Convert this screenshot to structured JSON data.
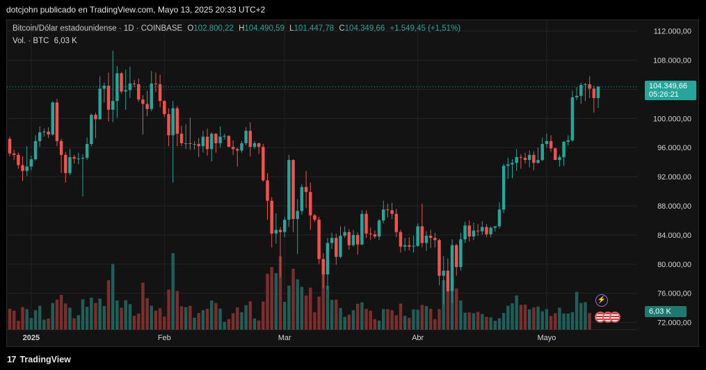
{
  "header": {
    "publisher": "dotcjohn publicado en TradingView.com, Mayo 13, 2025 20:33 UTC+2"
  },
  "legend": {
    "symbol": "Bitcoin/Dólar estadounidense · 1D · COINBASE",
    "o_label": "O",
    "o_value": "102.800,22",
    "h_label": "H",
    "h_value": "104.490,59",
    "l_label": "L",
    "l_value": "101.447,78",
    "c_label": "C",
    "c_value": "104.349,66",
    "change": "+1.549,45 (+1,51%)",
    "vol_label": "Vol. · BTC",
    "vol_value": "6,03 K"
  },
  "last_price": {
    "price": "104.349,66",
    "countdown": "05:26:21",
    "volume": "6,03 K"
  },
  "footer": {
    "brand": "TradingView"
  },
  "colors": {
    "up": "#26a69a",
    "down": "#ef5350",
    "vol_up": "#1f5f58",
    "vol_down": "#7a2f2e",
    "background": "#131313",
    "grid": "#242424"
  },
  "icons": [
    "lightning-icon",
    "us-flag-icon"
  ],
  "chart_data": {
    "type": "candlestick",
    "title": "Bitcoin/Dólar estadounidense · 1D · COINBASE",
    "xlabel": "",
    "ylabel": "",
    "x_ticks": [
      "2025",
      "Feb",
      "Mar",
      "Abr",
      "Mayo"
    ],
    "y_ticks": [
      "112.000,00",
      "108.000,00",
      "104.000,00",
      "100.000,00",
      "96.000,00",
      "92.000,00",
      "88.000,00",
      "84.000,00",
      "80.000,00",
      "76.000,00",
      "72.000,00"
    ],
    "y_tick_values": [
      112000,
      108000,
      104000,
      100000,
      96000,
      92000,
      88000,
      84000,
      80000,
      76000,
      72000
    ],
    "ylim": [
      71000,
      113500
    ],
    "grid": true,
    "legend_position": "top-left",
    "dates": [
      "2024-12-27",
      "2024-12-28",
      "2024-12-29",
      "2024-12-30",
      "2024-12-31",
      "2025-01-01",
      "2025-01-02",
      "2025-01-03",
      "2025-01-04",
      "2025-01-05",
      "2025-01-06",
      "2025-01-07",
      "2025-01-08",
      "2025-01-09",
      "2025-01-10",
      "2025-01-11",
      "2025-01-12",
      "2025-01-13",
      "2025-01-14",
      "2025-01-15",
      "2025-01-16",
      "2025-01-17",
      "2025-01-18",
      "2025-01-19",
      "2025-01-20",
      "2025-01-21",
      "2025-01-22",
      "2025-01-23",
      "2025-01-24",
      "2025-01-25",
      "2025-01-26",
      "2025-01-27",
      "2025-01-28",
      "2025-01-29",
      "2025-01-30",
      "2025-01-31",
      "2025-02-01",
      "2025-02-02",
      "2025-02-03",
      "2025-02-04",
      "2025-02-05",
      "2025-02-06",
      "2025-02-07",
      "2025-02-08",
      "2025-02-09",
      "2025-02-10",
      "2025-02-11",
      "2025-02-12",
      "2025-02-13",
      "2025-02-14",
      "2025-02-15",
      "2025-02-16",
      "2025-02-17",
      "2025-02-18",
      "2025-02-19",
      "2025-02-20",
      "2025-02-21",
      "2025-02-22",
      "2025-02-23",
      "2025-02-24",
      "2025-02-25",
      "2025-02-26",
      "2025-02-27",
      "2025-02-28",
      "2025-03-01",
      "2025-03-02",
      "2025-03-03",
      "2025-03-04",
      "2025-03-05",
      "2025-03-06",
      "2025-03-07",
      "2025-03-08",
      "2025-03-09",
      "2025-03-10",
      "2025-03-11",
      "2025-03-12",
      "2025-03-13",
      "2025-03-14",
      "2025-03-15",
      "2025-03-16",
      "2025-03-17",
      "2025-03-18",
      "2025-03-19",
      "2025-03-20",
      "2025-03-21",
      "2025-03-22",
      "2025-03-23",
      "2025-03-24",
      "2025-03-25",
      "2025-03-26",
      "2025-03-27",
      "2025-03-28",
      "2025-03-29",
      "2025-03-30",
      "2025-03-31",
      "2025-04-01",
      "2025-04-02",
      "2025-04-03",
      "2025-04-04",
      "2025-04-05",
      "2025-04-06",
      "2025-04-07",
      "2025-04-08",
      "2025-04-09",
      "2025-04-10",
      "2025-04-11",
      "2025-04-12",
      "2025-04-13",
      "2025-04-14",
      "2025-04-15",
      "2025-04-16",
      "2025-04-17",
      "2025-04-18",
      "2025-04-19",
      "2025-04-20",
      "2025-04-21",
      "2025-04-22",
      "2025-04-23",
      "2025-04-24",
      "2025-04-25",
      "2025-04-26",
      "2025-04-27",
      "2025-04-28",
      "2025-04-29",
      "2025-04-30",
      "2025-05-01",
      "2025-05-02",
      "2025-05-03",
      "2025-05-04",
      "2025-05-05",
      "2025-05-06",
      "2025-05-07",
      "2025-05-08",
      "2025-05-09",
      "2025-05-10",
      "2025-05-11",
      "2025-05-12",
      "2025-05-13"
    ],
    "ohlc": [
      [
        97200,
        97500,
        94800,
        95200
      ],
      [
        95200,
        95700,
        94300,
        95000
      ],
      [
        95000,
        95300,
        93100,
        93600
      ],
      [
        93600,
        94800,
        91400,
        92800
      ],
      [
        92800,
        96200,
        92100,
        93400
      ],
      [
        93400,
        94900,
        92900,
        94400
      ],
      [
        94400,
        97700,
        94200,
        96900
      ],
      [
        96900,
        98900,
        96100,
        98100
      ],
      [
        98100,
        98600,
        97500,
        98200
      ],
      [
        98200,
        98800,
        97300,
        97800
      ],
      [
        97800,
        102400,
        97600,
        102200
      ],
      [
        102200,
        102700,
        96200,
        96900
      ],
      [
        96900,
        97200,
        92500,
        95000
      ],
      [
        95000,
        95400,
        91200,
        92500
      ],
      [
        92500,
        95800,
        92200,
        94700
      ],
      [
        94700,
        95000,
        93800,
        94500
      ],
      [
        94500,
        95300,
        93700,
        94500
      ],
      [
        94500,
        95100,
        89300,
        94600
      ],
      [
        94600,
        97400,
        94300,
        96500
      ],
      [
        96500,
        100700,
        96200,
        100500
      ],
      [
        100500,
        100800,
        97300,
        99900
      ],
      [
        99900,
        105800,
        99800,
        104100
      ],
      [
        104100,
        104900,
        102200,
        104500
      ],
      [
        104500,
        106300,
        99600,
        101200
      ],
      [
        101200,
        109300,
        99500,
        102400
      ],
      [
        102400,
        107200,
        100100,
        106200
      ],
      [
        106200,
        106400,
        103400,
        103700
      ],
      [
        103700,
        106700,
        101200,
        103900
      ],
      [
        103900,
        107100,
        102800,
        104800
      ],
      [
        104800,
        105300,
        104300,
        104700
      ],
      [
        104700,
        105500,
        102300,
        102600
      ],
      [
        102600,
        103200,
        97800,
        102000
      ],
      [
        102000,
        103800,
        100300,
        101300
      ],
      [
        101300,
        106500,
        101000,
        104800
      ],
      [
        104800,
        106300,
        103600,
        104700
      ],
      [
        104700,
        106000,
        101500,
        102400
      ],
      [
        102400,
        102500,
        100200,
        100600
      ],
      [
        100600,
        101400,
        96200,
        97700
      ],
      [
        97700,
        102400,
        91200,
        101400
      ],
      [
        101400,
        101700,
        96200,
        97900
      ],
      [
        97900,
        99000,
        96200,
        96600
      ],
      [
        96600,
        99200,
        95800,
        96600
      ],
      [
        96600,
        100100,
        95700,
        96500
      ],
      [
        96500,
        96900,
        95700,
        96500
      ],
      [
        96500,
        97300,
        94700,
        96200
      ],
      [
        96200,
        98300,
        95300,
        97500
      ],
      [
        97500,
        98600,
        94900,
        95800
      ],
      [
        95800,
        98100,
        94100,
        97900
      ],
      [
        97900,
        98000,
        95300,
        96600
      ],
      [
        96600,
        98900,
        96000,
        97500
      ],
      [
        97500,
        97900,
        97100,
        97600
      ],
      [
        97600,
        97700,
        96100,
        96100
      ],
      [
        96100,
        97000,
        95000,
        95800
      ],
      [
        95800,
        96000,
        93400,
        95600
      ],
      [
        95600,
        96900,
        95300,
        96600
      ],
      [
        96600,
        98800,
        96300,
        98300
      ],
      [
        98300,
        99500,
        94800,
        96100
      ],
      [
        96100,
        96900,
        95800,
        96600
      ],
      [
        96600,
        96700,
        95100,
        96100
      ],
      [
        96100,
        96500,
        91300,
        91500
      ],
      [
        91500,
        92500,
        86100,
        88700
      ],
      [
        88700,
        89200,
        82300,
        84200
      ],
      [
        84200,
        87000,
        82800,
        84700
      ],
      [
        84700,
        85100,
        78200,
        84400
      ],
      [
        84400,
        86500,
        83700,
        86100
      ],
      [
        86100,
        95000,
        85100,
        94300
      ],
      [
        94300,
        94400,
        84400,
        86200
      ],
      [
        86200,
        88900,
        81400,
        87300
      ],
      [
        87300,
        91000,
        86800,
        90600
      ],
      [
        90600,
        92800,
        87700,
        89900
      ],
      [
        89900,
        91200,
        84700,
        86700
      ],
      [
        86700,
        86900,
        85800,
        86100
      ],
      [
        86100,
        86500,
        80000,
        80700
      ],
      [
        80700,
        81500,
        76700,
        78600
      ],
      [
        78600,
        83600,
        76600,
        82900
      ],
      [
        82900,
        84300,
        82100,
        83600
      ],
      [
        83600,
        84200,
        79900,
        81000
      ],
      [
        81000,
        85200,
        80800,
        83900
      ],
      [
        83900,
        85200,
        83600,
        84400
      ],
      [
        84400,
        84800,
        82000,
        82600
      ],
      [
        82600,
        84700,
        82400,
        84000
      ],
      [
        84000,
        84400,
        81300,
        82700
      ],
      [
        82700,
        87400,
        82600,
        86900
      ],
      [
        86900,
        87400,
        83600,
        84200
      ],
      [
        84200,
        85000,
        83300,
        84100
      ],
      [
        84100,
        84600,
        83500,
        83800
      ],
      [
        83800,
        86200,
        83300,
        86000
      ],
      [
        86000,
        88700,
        85600,
        87500
      ],
      [
        87500,
        88300,
        86400,
        87400
      ],
      [
        87400,
        88400,
        86200,
        86900
      ],
      [
        86900,
        87600,
        83700,
        84400
      ],
      [
        84400,
        84700,
        81600,
        82400
      ],
      [
        82400,
        83600,
        81800,
        82600
      ],
      [
        82600,
        83700,
        81900,
        82400
      ],
      [
        82400,
        83900,
        81600,
        82500
      ],
      [
        82500,
        85600,
        82400,
        85200
      ],
      [
        85200,
        88300,
        82300,
        82900
      ],
      [
        82900,
        84500,
        81800,
        83900
      ],
      [
        83900,
        84700,
        82200,
        83600
      ],
      [
        83600,
        84300,
        82300,
        83300
      ],
      [
        83300,
        83500,
        77100,
        78400
      ],
      [
        78400,
        81100,
        74500,
        79100
      ],
      [
        79100,
        80800,
        76200,
        76300
      ],
      [
        76300,
        83400,
        74600,
        82600
      ],
      [
        82600,
        82800,
        78400,
        79600
      ],
      [
        79600,
        84300,
        79100,
        83400
      ],
      [
        83400,
        85800,
        82900,
        85300
      ],
      [
        85300,
        86000,
        83100,
        83800
      ],
      [
        83800,
        85700,
        83300,
        84600
      ],
      [
        84600,
        85500,
        83900,
        84500
      ],
      [
        84500,
        85900,
        84000,
        85100
      ],
      [
        85100,
        85500,
        83700,
        84100
      ],
      [
        84100,
        85200,
        83700,
        85000
      ],
      [
        85000,
        85200,
        84500,
        85200
      ],
      [
        85200,
        88500,
        84900,
        87500
      ],
      [
        87500,
        93800,
        87000,
        93500
      ],
      [
        93500,
        94600,
        91700,
        93700
      ],
      [
        93700,
        94400,
        91800,
        93900
      ],
      [
        93900,
        95800,
        92800,
        94700
      ],
      [
        94700,
        95100,
        93100,
        94600
      ],
      [
        94600,
        95300,
        93800,
        94300
      ],
      [
        94300,
        95600,
        93300,
        95000
      ],
      [
        95000,
        95500,
        92900,
        93900
      ],
      [
        93900,
        96000,
        93800,
        94300
      ],
      [
        94300,
        97400,
        94100,
        96500
      ],
      [
        96500,
        97900,
        96000,
        96900
      ],
      [
        96900,
        97700,
        95400,
        95900
      ],
      [
        95900,
        96000,
        94400,
        94300
      ],
      [
        94300,
        95000,
        93400,
        94700
      ],
      [
        94700,
        96900,
        93500,
        96800
      ],
      [
        96800,
        97700,
        96300,
        97000
      ],
      [
        97000,
        103800,
        96800,
        102900
      ],
      [
        102900,
        104300,
        102500,
        103100
      ],
      [
        103100,
        104900,
        102000,
        104600
      ],
      [
        104600,
        104900,
        102400,
        104700
      ],
      [
        104700,
        105800,
        102800,
        104100
      ],
      [
        104100,
        104500,
        100800,
        102800
      ],
      [
        102800,
        104490,
        101447,
        104349
      ]
    ],
    "volume_btc": [
      7.5,
      6.8,
      3.2,
      8.1,
      7.4,
      4.2,
      7.0,
      8.6,
      3.6,
      4.0,
      9.6,
      10.8,
      12.5,
      9.4,
      7.9,
      4.1,
      5.2,
      10.9,
      8.2,
      11.5,
      9.6,
      11.2,
      8.5,
      17.8,
      23.6,
      10.5,
      7.9,
      10.6,
      9.2,
      5.0,
      5.8,
      16.9,
      11.3,
      8.6,
      6.9,
      7.7,
      4.7,
      14.4,
      27.5,
      13.9,
      8.4,
      8.1,
      8.6,
      4.3,
      6.0,
      7.0,
      7.5,
      10.5,
      9.6,
      7.6,
      2.8,
      3.8,
      5.9,
      8.0,
      6.3,
      8.8,
      10.2,
      4.0,
      3.3,
      10.1,
      20.1,
      22.5,
      20.3,
      26.4,
      10.0,
      15.8,
      21.9,
      18.1,
      15.4,
      12.3,
      15.1,
      6.3,
      11.9,
      20.8,
      15.8,
      10.7,
      10.8,
      7.8,
      4.6,
      5.4,
      7.0,
      9.3,
      9.8,
      7.5,
      6.8,
      3.8,
      3.3,
      7.4,
      7.4,
      7.0,
      5.2,
      9.4,
      5.0,
      4.3,
      7.3,
      7.2,
      8.9,
      8.5,
      7.5,
      3.8,
      7.4,
      17.8,
      15.0,
      18.2,
      14.8,
      10.5,
      6.1,
      6.2,
      5.9,
      6.4,
      5.6,
      4.6,
      4.4,
      3.2,
      4.1,
      6.0,
      8.6,
      9.5,
      12.3,
      8.9,
      9.0,
      7.3,
      8.0,
      8.3,
      6.6,
      7.4,
      4.9,
      5.9,
      7.9,
      5.8,
      5.8,
      6.3,
      13.6,
      9.6,
      9.9,
      6.03
    ],
    "volume_unit": "BTC",
    "last_close": 104349.66
  }
}
